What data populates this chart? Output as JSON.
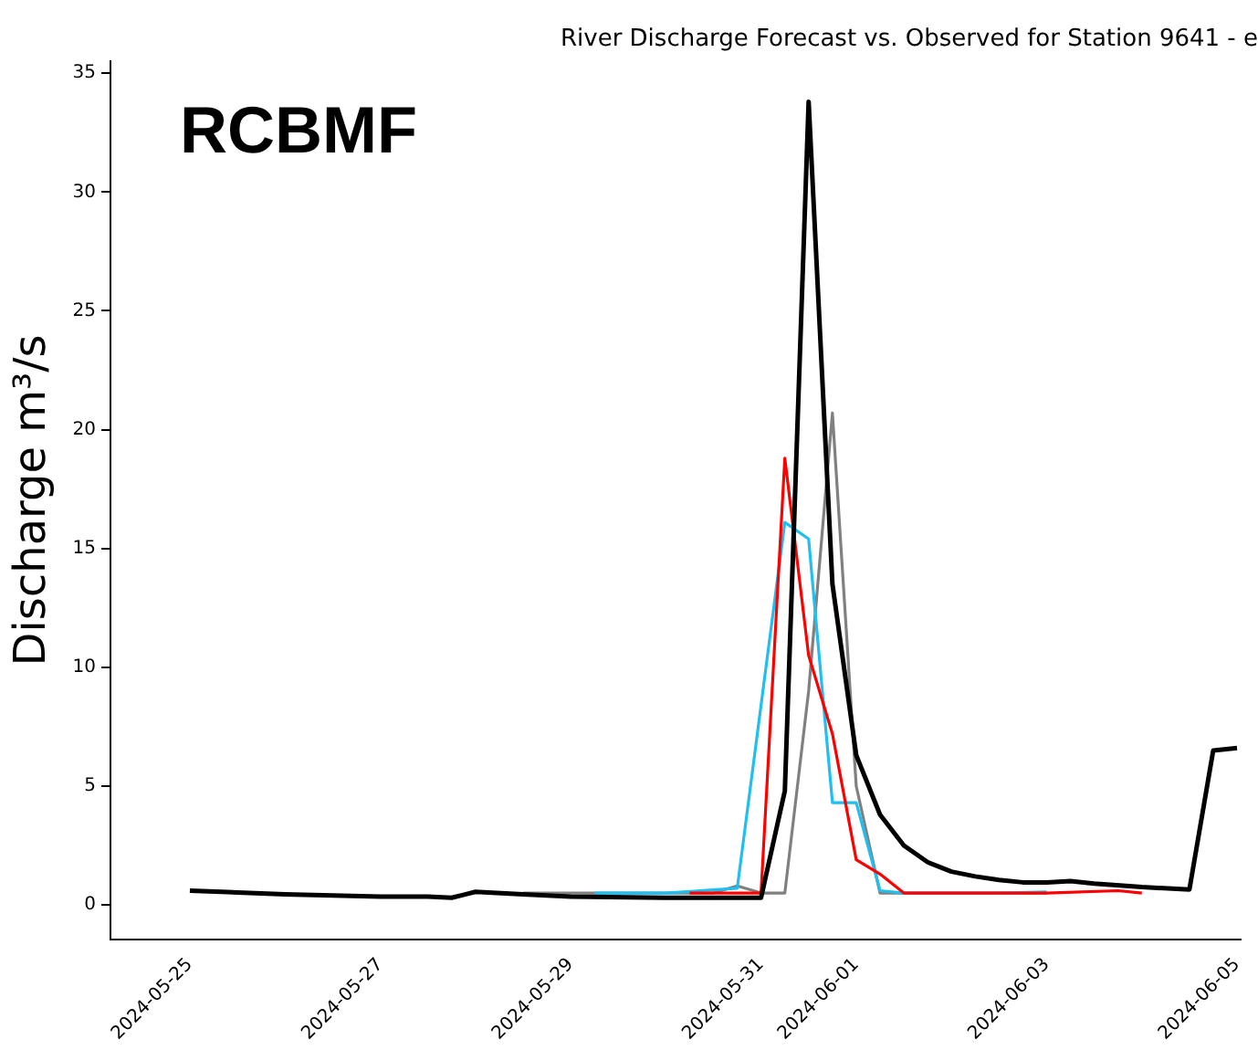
{
  "chart_data": {
    "type": "line",
    "title": "River Discharge Forecast vs. Observed for Station 9641 - e",
    "ylabel": "Discharge m³/s",
    "annotations": [
      "RCBMF"
    ],
    "xlim": [
      "2024-05-24T04:00",
      "2024-06-05T01:00"
    ],
    "xticks": [
      "2024-05-25",
      "2024-05-27",
      "2024-05-29",
      "2024-05-31",
      "2024-06-01",
      "2024-06-03",
      "2024-06-05"
    ],
    "ylim": [
      -1.45,
      35.5
    ],
    "yticks": [
      0,
      5,
      10,
      15,
      20,
      25,
      30,
      35
    ],
    "grid": false,
    "legend": false,
    "marker": "none",
    "series": [
      {
        "color": "#808080",
        "x": [
          "2024-05-28T12:00",
          "2024-05-29T12:00",
          "2024-05-30T12:00",
          "2024-05-30T18:00",
          "2024-05-31T00:00",
          "2024-05-31T06:00",
          "2024-05-31T12:00",
          "2024-05-31T18:00",
          "2024-06-01T00:00",
          "2024-06-01T06:00",
          "2024-06-02T00:00",
          "2024-06-03T00:00"
        ],
        "values": [
          0.5,
          0.5,
          0.5,
          0.8,
          0.5,
          0.5,
          9,
          20.7,
          5,
          0.5,
          0.5,
          0.5
        ]
      },
      {
        "color": "#1fbfef",
        "x": [
          "2024-05-29T06:00",
          "2024-05-30T00:00",
          "2024-05-30T18:00",
          "2024-05-31T06:00",
          "2024-05-31T12:00",
          "2024-05-31T18:00",
          "2024-06-01T00:00",
          "2024-06-01T06:00",
          "2024-06-01T12:00",
          "2024-06-02T12:00",
          "2024-06-03T00:00"
        ],
        "values": [
          0.5,
          0.5,
          0.7,
          16.1,
          15.4,
          4.3,
          4.3,
          0.6,
          0.5,
          0.5,
          0.55
        ]
      },
      {
        "color": "#ff0000",
        "x": [
          "2024-05-30T06:00",
          "2024-05-31T00:00",
          "2024-05-31T06:00",
          "2024-05-31T12:00",
          "2024-05-31T18:00",
          "2024-06-01T00:00",
          "2024-06-01T06:00",
          "2024-06-01T12:00",
          "2024-06-02T12:00",
          "2024-06-03T00:00",
          "2024-06-03T18:00",
          "2024-06-04T00:00"
        ],
        "values": [
          0.5,
          0.5,
          18.8,
          10.5,
          7.2,
          1.9,
          1.3,
          0.5,
          0.5,
          0.5,
          0.6,
          0.5
        ]
      },
      {
        "color": "#000000",
        "x": [
          "2024-05-25T00:00",
          "2024-05-26T00:00",
          "2024-05-27T00:00",
          "2024-05-27T12:00",
          "2024-05-27T18:00",
          "2024-05-28T00:00",
          "2024-05-28T12:00",
          "2024-05-29T00:00",
          "2024-05-30T00:00",
          "2024-05-31T00:00",
          "2024-05-31T06:00",
          "2024-05-31T12:00",
          "2024-05-31T18:00",
          "2024-06-01T00:00",
          "2024-06-01T06:00",
          "2024-06-01T12:00",
          "2024-06-01T18:00",
          "2024-06-02T00:00",
          "2024-06-02T06:00",
          "2024-06-02T12:00",
          "2024-06-02T18:00",
          "2024-06-03T00:00",
          "2024-06-03T06:00",
          "2024-06-03T12:00",
          "2024-06-04T00:00",
          "2024-06-04T12:00",
          "2024-06-04T18:00",
          "2024-06-05T00:00"
        ],
        "values": [
          0.6,
          0.45,
          0.35,
          0.35,
          0.3,
          0.55,
          0.45,
          0.35,
          0.3,
          0.3,
          4.8,
          33.8,
          13.5,
          6.3,
          3.8,
          2.5,
          1.8,
          1.4,
          1.2,
          1.05,
          0.95,
          0.95,
          1.0,
          0.9,
          0.75,
          0.65,
          6.5,
          6.6
        ]
      }
    ]
  }
}
